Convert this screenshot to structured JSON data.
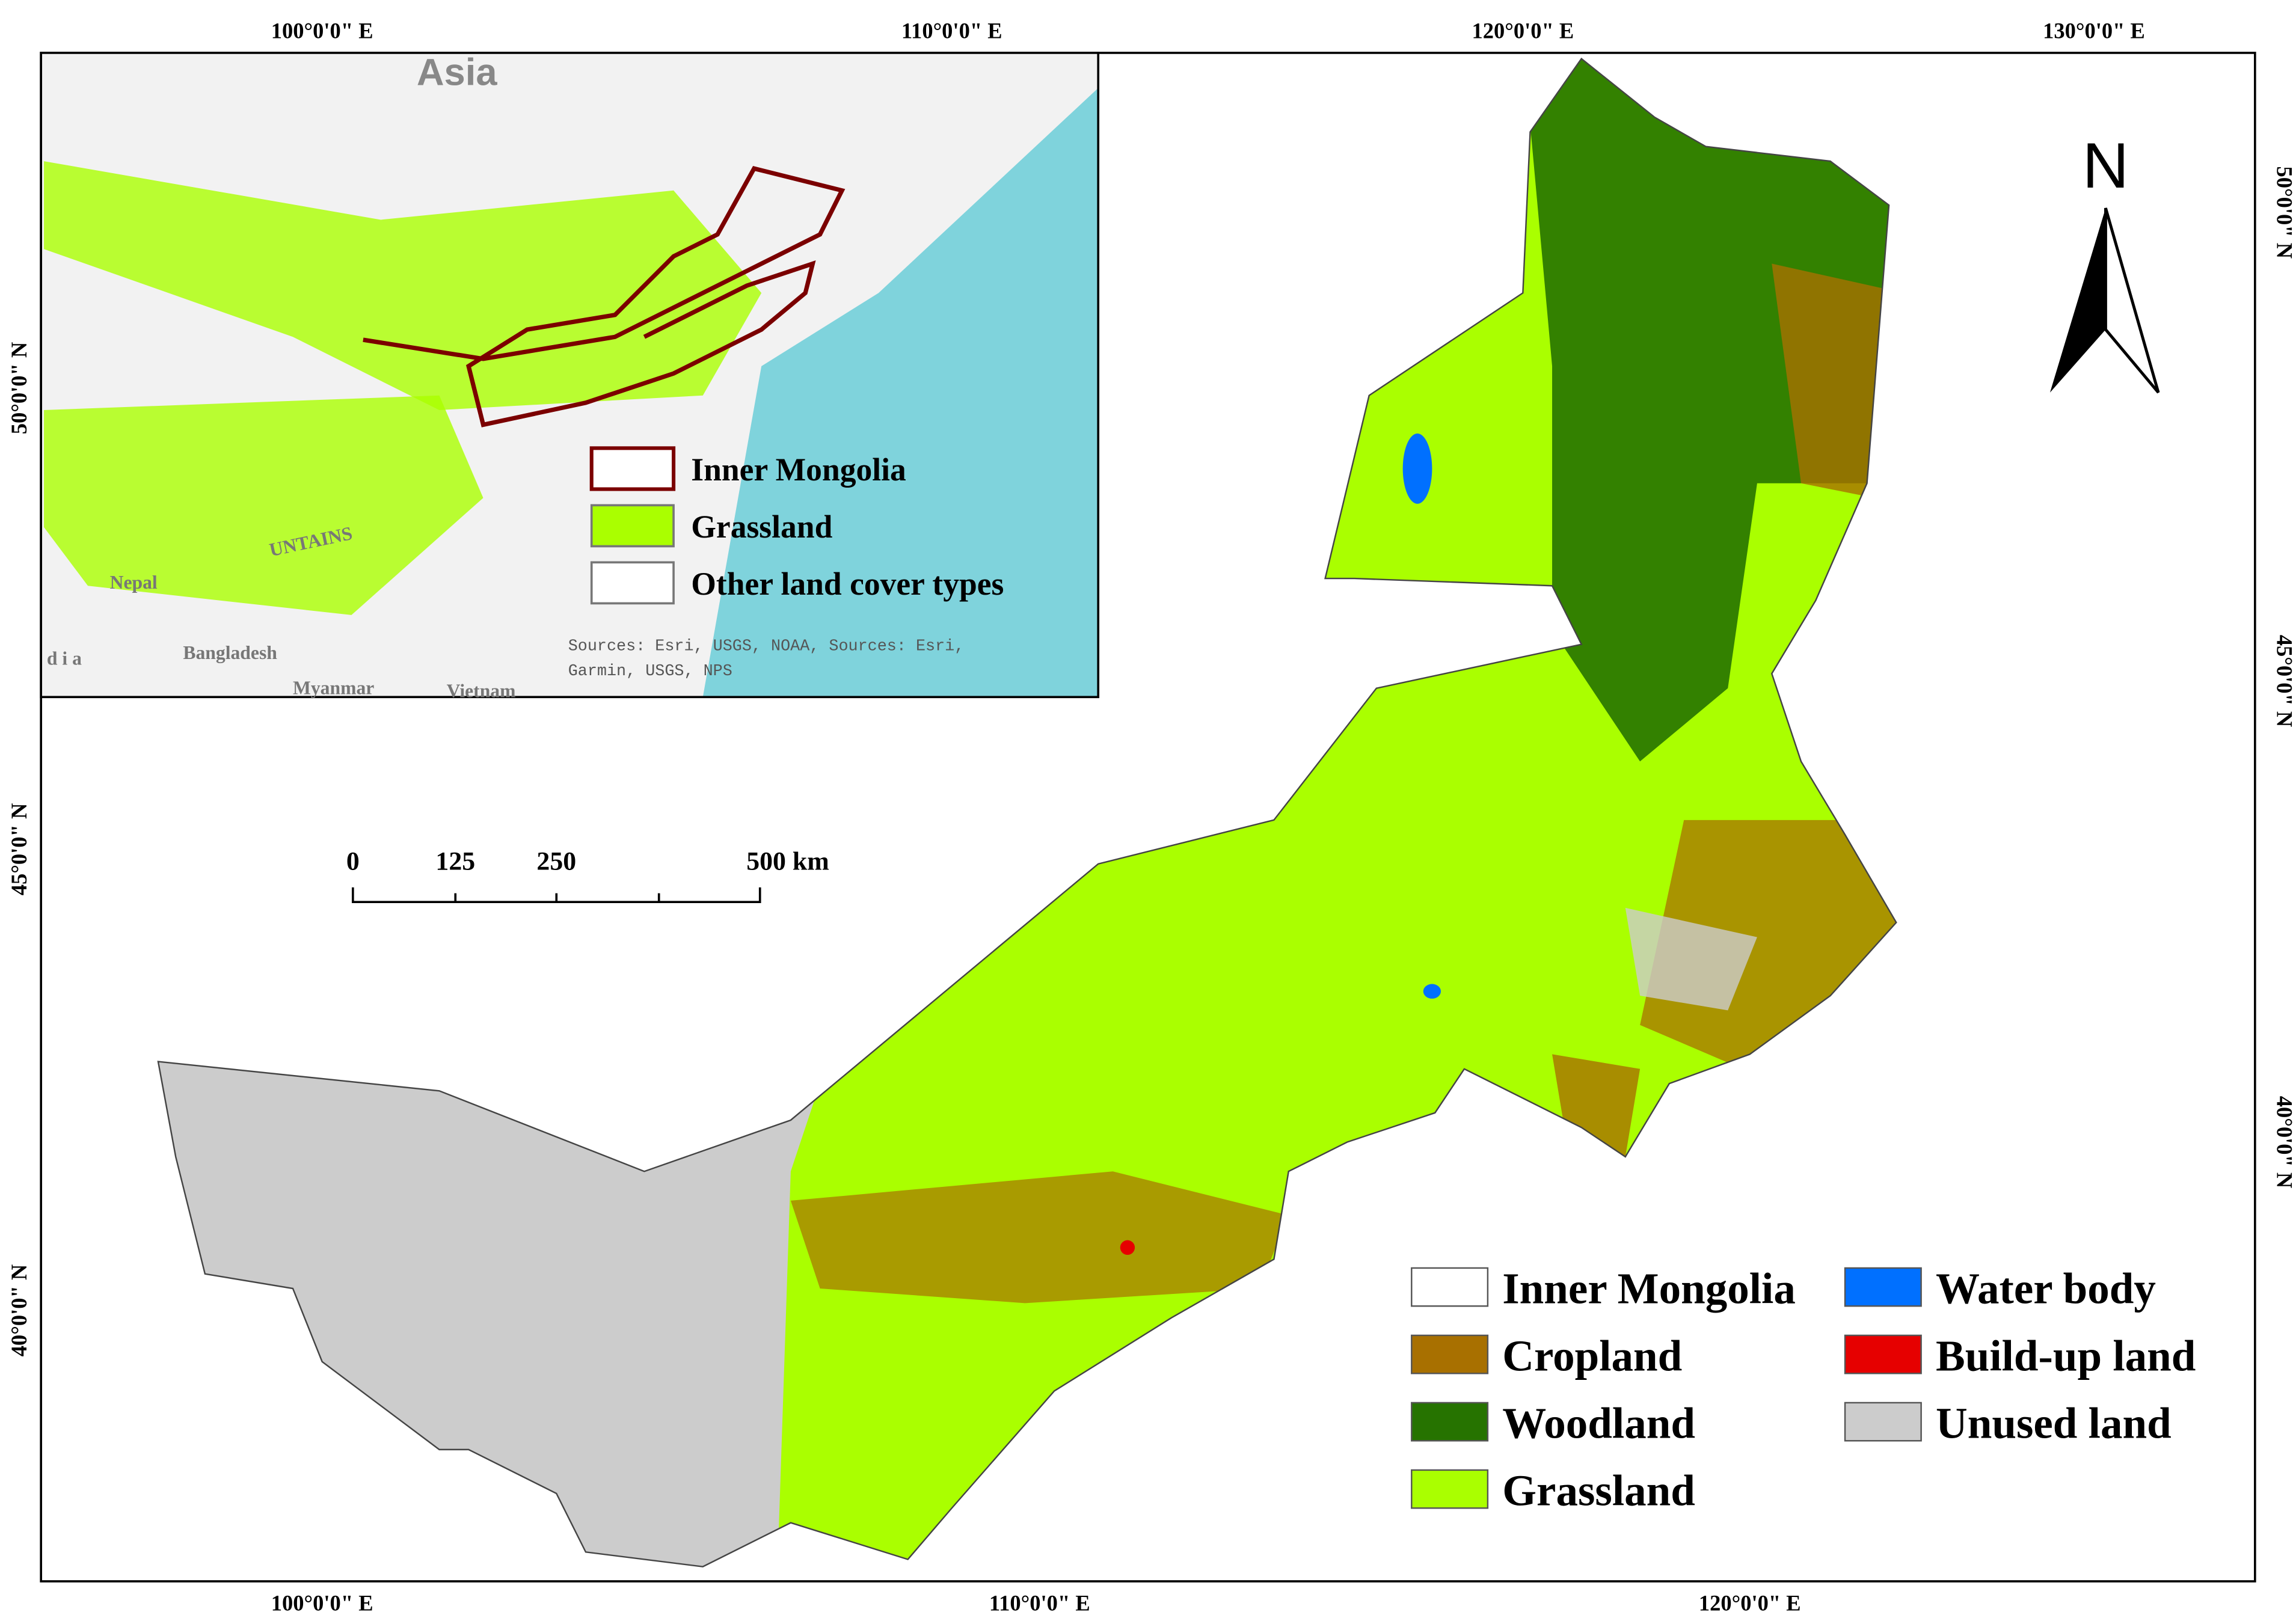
{
  "grid_labels": {
    "top": [
      "100°0'0\" E",
      "110°0'0\" E",
      "120°0'0\" E",
      "130°0'0\" E"
    ],
    "bottom": [
      "100°0'0\" E",
      "110°0'0\" E",
      "120°0'0\" E"
    ],
    "left": [
      "50°0'0\" N",
      "45°0'0\" N",
      "40°0'0\" N"
    ],
    "right": [
      "50°0'0\" N",
      "45°0'0\" N",
      "40°0'0\" N"
    ]
  },
  "inset": {
    "title": "Asia",
    "places": [
      "Nepal",
      "Bangladesh",
      "Myanmar",
      "Vietnam",
      "d i a",
      "UNTAINS"
    ],
    "source": [
      "Sources: Esri, USGS, NOAA, Sources: Esri,",
      "Garmin, USGS, NPS"
    ],
    "legend": [
      {
        "label": "Inner Mongolia",
        "color": "#ffffff"
      },
      {
        "label": "Grassland",
        "color": "#aaff00"
      },
      {
        "label": "Other land cover types",
        "color": "#ffffff"
      }
    ]
  },
  "north_arrow": "N",
  "scale_bar": [
    "0",
    "125",
    "250",
    "500 km"
  ],
  "legend": [
    {
      "label": "Inner Mongolia",
      "color": "#ffffff"
    },
    {
      "label": "Cropland",
      "color": "#a87000"
    },
    {
      "label": "Woodland",
      "color": "#267300"
    },
    {
      "label": "Grassland",
      "color": "#aaff00"
    },
    {
      "label": "Water body",
      "color": "#0070ff"
    },
    {
      "label": "Build-up land",
      "color": "#e60000"
    },
    {
      "label": "Unused land",
      "color": "#cccccc"
    }
  ]
}
